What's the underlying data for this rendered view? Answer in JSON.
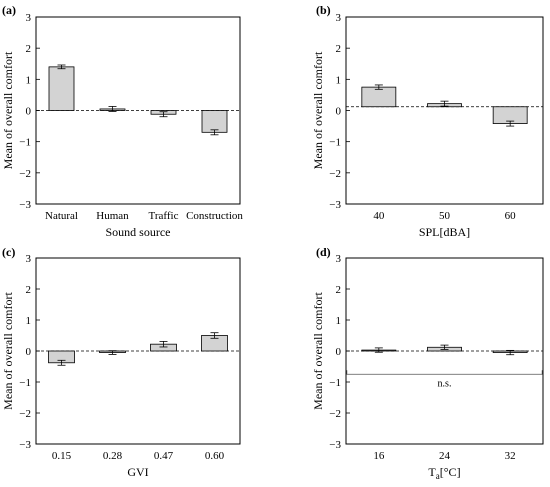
{
  "chart_data": [
    {
      "panel_label": "(a)",
      "type": "bar",
      "categories": [
        "Natural",
        "Human",
        "Traffic",
        "Construction"
      ],
      "values": [
        1.4,
        0.05,
        -0.12,
        -0.7
      ],
      "errors": [
        0.06,
        0.08,
        0.08,
        0.08
      ],
      "xlabel": "Sound source",
      "ylabel": "Mean of overall comfort",
      "ylim": [
        -3,
        3
      ],
      "yticks": [
        "3",
        "2",
        "1",
        "0",
        "−1",
        "−2",
        "−3"
      ],
      "ytick_values": [
        3,
        2,
        1,
        0,
        -1,
        -2,
        -3
      ],
      "reference_line": 0.0,
      "annotation": ""
    },
    {
      "panel_label": "(b)",
      "type": "bar",
      "categories": [
        "40",
        "50",
        "60"
      ],
      "values": [
        0.75,
        0.22,
        -0.42
      ],
      "errors": [
        0.07,
        0.08,
        0.08
      ],
      "xlabel": "SPL[dBA]",
      "ylabel": "Mean of overall comfort",
      "ylim": [
        -3,
        3
      ],
      "yticks": [
        "3",
        "2",
        "1",
        "0",
        "−1",
        "−2",
        "−3"
      ],
      "ytick_values": [
        3,
        2,
        1,
        0,
        -1,
        -2,
        -3
      ],
      "reference_line": 0.12,
      "annotation": ""
    },
    {
      "panel_label": "(c)",
      "type": "bar",
      "categories": [
        "0.15",
        "0.28",
        "0.47",
        "0.60"
      ],
      "values": [
        -0.38,
        -0.05,
        0.22,
        0.5
      ],
      "errors": [
        0.08,
        0.06,
        0.09,
        0.09
      ],
      "xlabel": "GVI",
      "ylabel": "Mean of overall comfort",
      "ylim": [
        -3,
        3
      ],
      "yticks": [
        "3",
        "2",
        "1",
        "0",
        "−1",
        "−2",
        "−3"
      ],
      "ytick_values": [
        3,
        2,
        1,
        0,
        -1,
        -2,
        -3
      ],
      "reference_line": 0.0,
      "annotation": ""
    },
    {
      "panel_label": "(d)",
      "type": "bar",
      "categories": [
        "16",
        "24",
        "32"
      ],
      "values": [
        0.03,
        0.12,
        -0.05
      ],
      "errors": [
        0.07,
        0.07,
        0.07
      ],
      "xlabel": "T",
      "xlabel_sub": "a",
      "xlabel_unit": "[°C]",
      "ylabel": "Mean of overall comfort",
      "ylim": [
        -3,
        3
      ],
      "yticks": [
        "3",
        "2",
        "1",
        "0",
        "−1",
        "−2",
        "−3"
      ],
      "ytick_values": [
        3,
        2,
        1,
        0,
        -1,
        -2,
        -3
      ],
      "reference_line": 0.0,
      "annotation": "n.s."
    }
  ]
}
